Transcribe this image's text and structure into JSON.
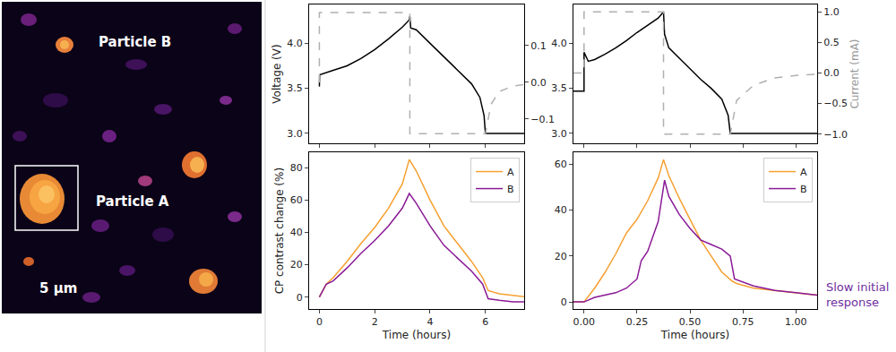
{
  "image_panel": {
    "type": "image",
    "particle_a": "Particle A",
    "particle_b": "Particle B",
    "scale_bar": "5 µm"
  },
  "chart_data": [
    {
      "type": "line",
      "ylabel": "Voltage (V)",
      "tick_labels": "y",
      "xlim": [
        -0.37,
        7.4
      ],
      "xticks": [
        0,
        2,
        4,
        6
      ],
      "ylim": [
        2.89,
        4.43
      ],
      "yticks": [
        {
          "value": 3.0,
          "label": "3.0"
        },
        3.5,
        {
          "value": 4.0,
          "label": "4.0"
        }
      ],
      "y2lim": [
        -0.166,
        0.212
      ],
      "y2ticks": [
        {
          "value": -0.1,
          "label": "−0.1"
        },
        {
          "value": 0,
          "label": "0.0"
        },
        0.1
      ],
      "series": [
        {
          "color": "#000000",
          "line_style": "solid",
          "x": [
            0,
            0.01,
            0.5,
            1,
            1.5,
            2,
            2.5,
            3,
            3.25,
            3.27,
            3.3,
            3.5,
            4,
            4.5,
            5,
            5.5,
            5.8,
            5.95,
            6.0,
            7.5
          ],
          "values": [
            3.52,
            3.65,
            3.7,
            3.75,
            3.83,
            3.93,
            4.05,
            4.18,
            4.26,
            4.3,
            4.17,
            4.15,
            4.0,
            3.85,
            3.7,
            3.55,
            3.4,
            3.2,
            3.0,
            3.0
          ]
        },
        {
          "color": "#b0b0b0",
          "line_style": "dashed",
          "axis": "y2",
          "x": [
            0,
            0,
            3.27,
            3.27,
            6.0,
            6.2,
            6.5,
            7.0,
            7.5
          ],
          "values": [
            0,
            0.19,
            0.19,
            -0.14,
            -0.14,
            -0.06,
            -0.025,
            -0.01,
            -0.005
          ]
        }
      ]
    },
    {
      "type": "line",
      "y2label": "Current (mA)",
      "tick_labels": "y",
      "xlim": [
        -0.05,
        1.1
      ],
      "xticks": [
        0,
        0.25,
        0.5,
        0.75,
        1.0
      ],
      "ylim": [
        2.89,
        4.43
      ],
      "yticks": [
        {
          "value": 3.0,
          "label": "3.0"
        },
        3.5,
        {
          "value": 4.0,
          "label": "4.0"
        }
      ],
      "y2lim": [
        -1.15,
        1.12
      ],
      "y2ticks": [
        {
          "value": -1.0,
          "label": "−1.0"
        },
        {
          "value": -0.5,
          "label": "−0.5"
        },
        {
          "value": 0,
          "label": "0.0"
        },
        0.5,
        {
          "value": 1.0,
          "label": "1.0"
        }
      ],
      "series": [
        {
          "color": "#000000",
          "line_style": "solid",
          "x": [
            -0.05,
            0,
            0,
            0.02,
            0.05,
            0.1,
            0.15,
            0.2,
            0.25,
            0.3,
            0.35,
            0.375,
            0.38,
            0.4,
            0.45,
            0.5,
            0.55,
            0.6,
            0.65,
            0.68,
            0.69,
            1.1
          ],
          "values": [
            3.47,
            3.47,
            3.9,
            3.8,
            3.82,
            3.88,
            3.95,
            4.03,
            4.12,
            4.2,
            4.28,
            4.35,
            4.1,
            3.95,
            3.83,
            3.72,
            3.6,
            3.5,
            3.38,
            3.2,
            3.0,
            3.0
          ]
        },
        {
          "color": "#b0b0b0",
          "line_style": "dashed",
          "axis": "y2",
          "x": [
            -0.05,
            0,
            0,
            0.375,
            0.375,
            0.69,
            0.72,
            0.8,
            0.9,
            1.0,
            1.1
          ],
          "values": [
            0,
            0,
            1.0,
            1.0,
            -1.0,
            -1.0,
            -0.45,
            -0.2,
            -0.08,
            -0.04,
            -0.02
          ]
        }
      ]
    },
    {
      "type": "line",
      "xlabel": "Time (hours)",
      "ylabel": "CP contrast change (%)",
      "legend": "upper right",
      "xlim": [
        -0.37,
        7.4
      ],
      "xticks": [
        0,
        2,
        4,
        6
      ],
      "ylim": [
        -7.4,
        89.4
      ],
      "yticks": [
        0,
        20,
        40,
        60,
        80
      ],
      "series": [
        {
          "name": "A",
          "color": "#f5a030",
          "line_style": "solid",
          "x": [
            0,
            0.25,
            0.5,
            1,
            1.5,
            2,
            2.5,
            3,
            3.25,
            3.5,
            4,
            4.5,
            5,
            5.5,
            5.9,
            6.1,
            6.5,
            7,
            7.5
          ],
          "values": [
            0,
            8,
            12,
            22,
            33,
            43,
            55,
            70,
            85,
            78,
            60,
            44,
            33,
            22,
            12,
            4,
            2,
            1,
            0
          ]
        },
        {
          "name": "B",
          "color": "#8a1a96",
          "line_style": "solid",
          "x": [
            0,
            0.25,
            0.5,
            1,
            1.5,
            2,
            2.5,
            3,
            3.25,
            3.5,
            4,
            4.5,
            5,
            5.5,
            5.9,
            6.1,
            6.5,
            7,
            7.5
          ],
          "values": [
            0,
            8,
            10,
            18,
            27,
            35,
            44,
            55,
            64,
            58,
            44,
            32,
            24,
            16,
            8,
            -1,
            -2,
            -3,
            -3
          ]
        }
      ]
    },
    {
      "type": "line",
      "xlabel": "Time (hours)",
      "legend": "upper right",
      "xlim": [
        -0.05,
        1.1
      ],
      "xticks": [
        {
          "value": 0,
          "label": "0.00"
        },
        0.25,
        {
          "value": 0.5,
          "label": "0.50"
        },
        0.75,
        {
          "value": 1.0,
          "label": "1.00"
        }
      ],
      "ylim": [
        -3.1,
        65.1
      ],
      "yticks": [
        0,
        20,
        40,
        60
      ],
      "annotations": [
        {
          "text": "Slow initial response",
          "color": "#7030a0"
        }
      ],
      "series": [
        {
          "name": "A",
          "color": "#f5a030",
          "line_style": "solid",
          "x": [
            -0.05,
            0,
            0.05,
            0.1,
            0.15,
            0.2,
            0.25,
            0.3,
            0.35,
            0.375,
            0.4,
            0.45,
            0.5,
            0.55,
            0.6,
            0.65,
            0.7,
            0.72,
            0.8,
            0.9,
            1.0,
            1.1
          ],
          "values": [
            0,
            0,
            6,
            13,
            21,
            30,
            36,
            44,
            54,
            62,
            55,
            45,
            36,
            27,
            20,
            13,
            9,
            8,
            6,
            5,
            4,
            3
          ]
        },
        {
          "name": "B",
          "color": "#8a1a96",
          "line_style": "solid",
          "x": [
            -0.05,
            0,
            0.05,
            0.1,
            0.15,
            0.2,
            0.25,
            0.27,
            0.3,
            0.35,
            0.38,
            0.4,
            0.45,
            0.5,
            0.55,
            0.6,
            0.65,
            0.69,
            0.71,
            0.8,
            0.9,
            1.0,
            1.1
          ],
          "values": [
            0,
            0,
            2,
            3,
            4,
            6,
            10,
            18,
            22,
            35,
            53,
            46,
            38,
            32,
            27,
            25,
            23,
            20,
            10,
            7,
            5,
            4,
            3
          ]
        }
      ]
    }
  ]
}
